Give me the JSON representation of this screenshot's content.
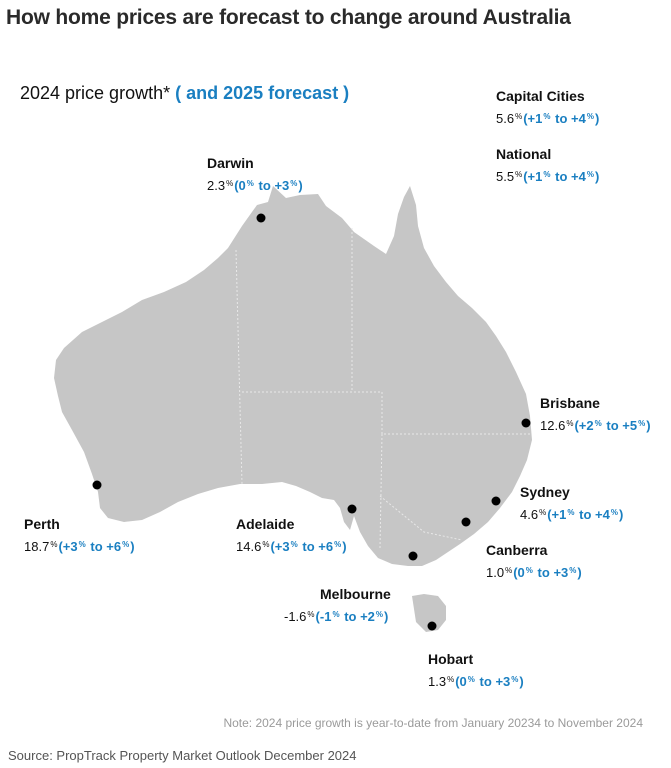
{
  "header": {
    "title": "How home prices are forecast to change around Australia"
  },
  "legend": {
    "growth_label": "2024 price growth*",
    "forecast_label": "( and 2025 forecast )"
  },
  "aggregates": [
    {
      "name": "Capital Cities",
      "growth": "5.6",
      "fc_low": "+1",
      "fc_high": "+4"
    },
    {
      "name": "National",
      "growth": "5.5",
      "fc_low": "+1",
      "fc_high": "+4"
    }
  ],
  "cities": {
    "darwin": {
      "name": "Darwin",
      "growth": "2.3",
      "fc_low": "0",
      "fc_high": "+3"
    },
    "brisbane": {
      "name": "Brisbane",
      "growth": "12.6",
      "fc_low": "+2",
      "fc_high": "+5"
    },
    "sydney": {
      "name": "Sydney",
      "growth": "4.6",
      "fc_low": "+1",
      "fc_high": "+4"
    },
    "canberra": {
      "name": "Canberra",
      "growth": "1.0",
      "fc_low": "0",
      "fc_high": "+3"
    },
    "perth": {
      "name": "Perth",
      "growth": "18.7",
      "fc_low": "+3",
      "fc_high": "+6"
    },
    "adelaide": {
      "name": "Adelaide",
      "growth": "14.6",
      "fc_low": "+3",
      "fc_high": "+6"
    },
    "melbourne": {
      "name": "Melbourne",
      "growth": "-1.6",
      "fc_low": "-1",
      "fc_high": "+2"
    },
    "hobart": {
      "name": "Hobart",
      "growth": "1.3",
      "fc_low": "0",
      "fc_high": "+3"
    }
  },
  "units": {
    "pct": "%",
    "to": "to"
  },
  "note": "Note: 2024 price growth is year-to-date from January 20234 to November 2024",
  "source": "Source: PropTrack Property Market Outlook December 2024",
  "colors": {
    "land": "#c6c6c6",
    "border": "#e8e8e8",
    "forecast": "#1a7fc1",
    "marker": "#000000"
  }
}
